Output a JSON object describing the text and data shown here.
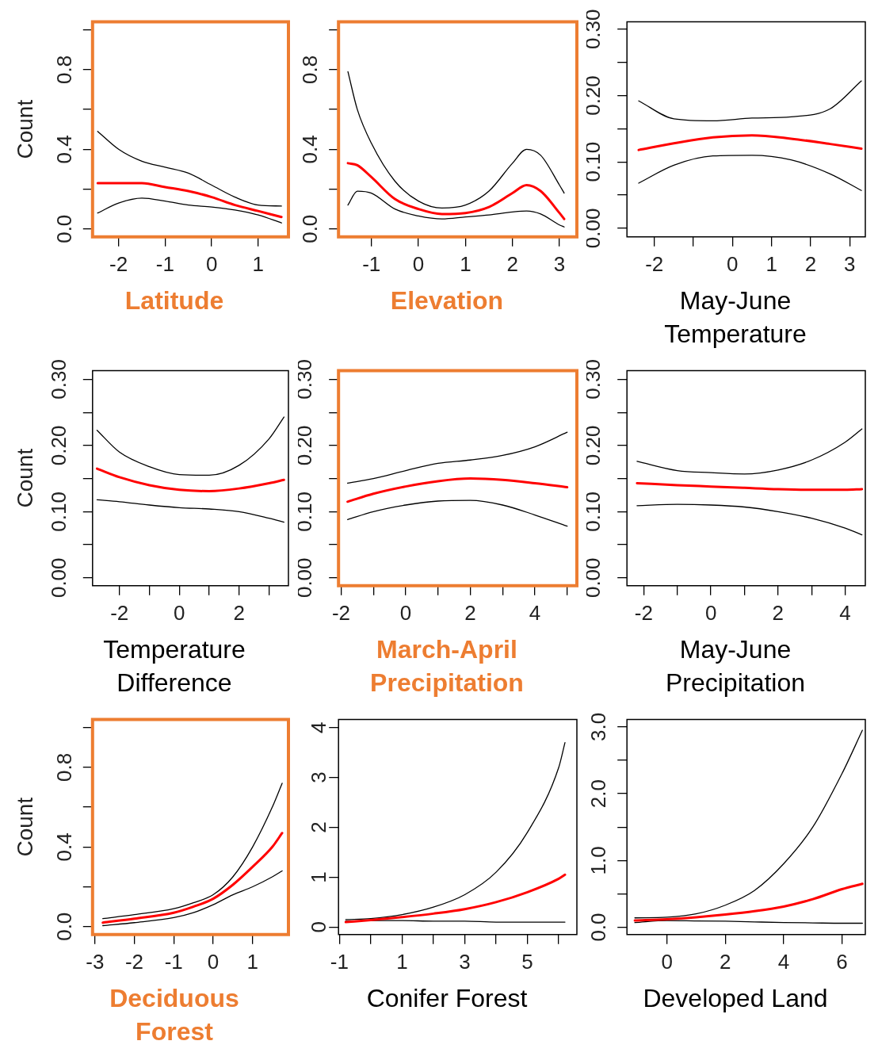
{
  "chart_data": [
    {
      "type": "line",
      "xlabel": "Latitude",
      "ylabel": "Count",
      "grid": false,
      "xlim": [
        -2.56,
        1.65
      ],
      "ylim": [
        -0.04,
        1.04
      ],
      "xticks": [
        -2,
        -1,
        0,
        1
      ],
      "yticks": [
        {
          "value": 0,
          "label": "0.0"
        },
        {
          "value": 0.2,
          "label": null
        },
        0.4,
        {
          "value": 0.6,
          "label": null
        },
        0.8,
        {
          "value": 1,
          "label": null
        }
      ],
      "x": [
        -2.45,
        -2,
        -1.5,
        -1,
        -0.5,
        0,
        0.5,
        1,
        1.5
      ],
      "series": [
        {
          "color": "#ff0000",
          "values": [
            0.23,
            0.23,
            0.23,
            0.21,
            0.19,
            0.16,
            0.12,
            0.09,
            0.06
          ]
        },
        {
          "color": "#000000",
          "values": [
            0.49,
            0.4,
            0.34,
            0.31,
            0.28,
            0.22,
            0.16,
            0.12,
            0.115
          ]
        },
        {
          "color": "#000000",
          "values": [
            0.08,
            0.13,
            0.155,
            0.14,
            0.12,
            0.11,
            0.095,
            0.07,
            0.03
          ]
        }
      ]
    },
    {
      "type": "line",
      "xlabel": "Elevation",
      "grid": false,
      "xlim": [
        -1.7,
        3.37
      ],
      "ylim": [
        -0.04,
        1.04
      ],
      "xticks": [
        -1,
        0,
        1,
        2,
        3
      ],
      "yticks": [
        {
          "value": 0,
          "label": "0.0"
        },
        {
          "value": 0.2,
          "label": null
        },
        0.4,
        {
          "value": 0.6,
          "label": null
        },
        0.8,
        {
          "value": 1,
          "label": null
        }
      ],
      "x": [
        -1.5,
        -1.3,
        -1,
        -0.5,
        0,
        0.5,
        1,
        1.5,
        2,
        2.3,
        2.6,
        3,
        3.1
      ],
      "series": [
        {
          "color": "#ff0000",
          "values": [
            0.33,
            0.32,
            0.26,
            0.15,
            0.1,
            0.075,
            0.08,
            0.11,
            0.18,
            0.22,
            0.19,
            0.08,
            0.05
          ]
        },
        {
          "color": "#000000",
          "values": [
            0.79,
            0.6,
            0.43,
            0.24,
            0.14,
            0.105,
            0.12,
            0.19,
            0.33,
            0.4,
            0.37,
            0.22,
            0.18
          ]
        },
        {
          "color": "#000000",
          "values": [
            0.12,
            0.19,
            0.18,
            0.1,
            0.065,
            0.05,
            0.06,
            0.07,
            0.085,
            0.09,
            0.075,
            0.02,
            0.01
          ]
        }
      ]
    },
    {
      "type": "line",
      "xlabel": "May-June Temperature",
      "grid": false,
      "xlim": [
        -2.7,
        3.4
      ],
      "ylim": [
        -0.013,
        0.311
      ],
      "xticks": [
        -2,
        {
          "value": -1,
          "label": null
        },
        0,
        1,
        2,
        3
      ],
      "yticks": [
        {
          "value": 0,
          "label": "0.00"
        },
        {
          "value": 0.05,
          "label": null
        },
        {
          "value": 0.1,
          "label": "0.10"
        },
        {
          "value": 0.15,
          "label": null
        },
        {
          "value": 0.2,
          "label": "0.20"
        },
        {
          "value": 0.25,
          "label": null
        },
        {
          "value": 0.3,
          "label": "0.30"
        }
      ],
      "x": [
        -2.4,
        -1.5,
        -0.5,
        0.5,
        1.5,
        2.5,
        3.3
      ],
      "series": [
        {
          "color": "#ff0000",
          "values": [
            0.118,
            0.128,
            0.137,
            0.14,
            0.135,
            0.127,
            0.12
          ]
        },
        {
          "color": "#000000",
          "values": [
            0.192,
            0.165,
            0.162,
            0.166,
            0.168,
            0.18,
            0.222
          ]
        },
        {
          "color": "#000000",
          "values": [
            0.068,
            0.095,
            0.109,
            0.11,
            0.103,
            0.082,
            0.057
          ]
        }
      ]
    },
    {
      "type": "line",
      "xlabel": "Temperature Difference",
      "ylabel": "Count",
      "grid": false,
      "xlim": [
        -2.9,
        3.65
      ],
      "ylim": [
        -0.012,
        0.313
      ],
      "xticks": [
        -2,
        {
          "value": -1,
          "label": null
        },
        0,
        {
          "value": 1,
          "label": null
        },
        2,
        {
          "value": 3,
          "label": null
        }
      ],
      "yticks": [
        {
          "value": 0,
          "label": "0.00"
        },
        {
          "value": 0.05,
          "label": null
        },
        {
          "value": 0.1,
          "label": "0.10"
        },
        {
          "value": 0.15,
          "label": null
        },
        {
          "value": 0.2,
          "label": "0.20"
        },
        {
          "value": 0.25,
          "label": null
        },
        {
          "value": 0.3,
          "label": "0.30"
        }
      ],
      "x": [
        -2.75,
        -2,
        -1,
        0,
        1,
        2,
        3,
        3.5
      ],
      "series": [
        {
          "color": "#ff0000",
          "values": [
            0.165,
            0.152,
            0.14,
            0.133,
            0.131,
            0.135,
            0.143,
            0.148
          ]
        },
        {
          "color": "#000000",
          "values": [
            0.223,
            0.19,
            0.168,
            0.156,
            0.155,
            0.17,
            0.21,
            0.243
          ]
        },
        {
          "color": "#000000",
          "values": [
            0.118,
            0.115,
            0.11,
            0.106,
            0.104,
            0.1,
            0.09,
            0.084
          ]
        }
      ]
    },
    {
      "type": "line",
      "xlabel": "March-April Precipitation",
      "grid": false,
      "xlim": [
        -2.08,
        5.3
      ],
      "ylim": [
        -0.012,
        0.313
      ],
      "xticks": [
        -2,
        {
          "value": -1,
          "label": null
        },
        0,
        {
          "value": 1,
          "label": null
        },
        2,
        {
          "value": 3,
          "label": null
        },
        4,
        {
          "value": 5,
          "label": null
        }
      ],
      "yticks": [
        {
          "value": 0,
          "label": "0.00"
        },
        {
          "value": 0.05,
          "label": null
        },
        {
          "value": 0.1,
          "label": "0.10"
        },
        {
          "value": 0.15,
          "label": null
        },
        {
          "value": 0.2,
          "label": "0.20"
        },
        {
          "value": 0.25,
          "label": null
        },
        {
          "value": 0.3,
          "label": "0.30"
        }
      ],
      "x": [
        -1.8,
        -1,
        0,
        1,
        2,
        3,
        4,
        5
      ],
      "series": [
        {
          "color": "#ff0000",
          "values": [
            0.115,
            0.127,
            0.138,
            0.146,
            0.15,
            0.148,
            0.143,
            0.137
          ]
        },
        {
          "color": "#000000",
          "values": [
            0.143,
            0.15,
            0.162,
            0.173,
            0.178,
            0.185,
            0.198,
            0.22
          ]
        },
        {
          "color": "#000000",
          "values": [
            0.088,
            0.1,
            0.11,
            0.116,
            0.117,
            0.11,
            0.095,
            0.078
          ]
        }
      ]
    },
    {
      "type": "line",
      "xlabel": "May-June Precipitation",
      "grid": false,
      "xlim": [
        -2.5,
        4.6
      ],
      "ylim": [
        -0.012,
        0.313
      ],
      "xticks": [
        -2,
        {
          "value": -1,
          "label": null
        },
        0,
        {
          "value": 1,
          "label": null
        },
        2,
        {
          "value": 3,
          "label": null
        },
        4
      ],
      "yticks": [
        {
          "value": 0,
          "label": "0.00"
        },
        {
          "value": 0.05,
          "label": null
        },
        {
          "value": 0.1,
          "label": "0.10"
        },
        {
          "value": 0.15,
          "label": null
        },
        {
          "value": 0.2,
          "label": "0.20"
        },
        {
          "value": 0.25,
          "label": null
        },
        {
          "value": 0.3,
          "label": "0.30"
        }
      ],
      "x": [
        -2.2,
        -1,
        0,
        1,
        2,
        3,
        4,
        4.5
      ],
      "series": [
        {
          "color": "#ff0000",
          "values": [
            0.143,
            0.14,
            0.138,
            0.136,
            0.134,
            0.133,
            0.133,
            0.134
          ]
        },
        {
          "color": "#000000",
          "values": [
            0.176,
            0.162,
            0.159,
            0.157,
            0.163,
            0.178,
            0.205,
            0.225
          ]
        },
        {
          "color": "#000000",
          "values": [
            0.109,
            0.111,
            0.11,
            0.107,
            0.1,
            0.09,
            0.075,
            0.065
          ]
        }
      ]
    },
    {
      "type": "line",
      "xlabel": "Deciduous Forest",
      "ylabel": "Count",
      "grid": false,
      "xlim": [
        -3.06,
        1.91
      ],
      "ylim": [
        -0.04,
        1.04
      ],
      "xticks": [
        -3,
        -2,
        -1,
        0,
        1
      ],
      "yticks": [
        {
          "value": 0,
          "label": "0.0"
        },
        {
          "value": 0.2,
          "label": null
        },
        0.4,
        {
          "value": 0.6,
          "label": null
        },
        0.8,
        {
          "value": 1,
          "label": null
        }
      ],
      "x": [
        -2.8,
        -2,
        -1,
        -0.5,
        0,
        0.5,
        1,
        1.5,
        1.75
      ],
      "series": [
        {
          "color": "#ff0000",
          "values": [
            0.02,
            0.04,
            0.07,
            0.1,
            0.14,
            0.21,
            0.3,
            0.4,
            0.47
          ]
        },
        {
          "color": "#000000",
          "values": [
            0.04,
            0.06,
            0.09,
            0.12,
            0.16,
            0.25,
            0.4,
            0.6,
            0.72
          ]
        },
        {
          "color": "#000000",
          "values": [
            0.005,
            0.02,
            0.045,
            0.07,
            0.11,
            0.16,
            0.2,
            0.25,
            0.28
          ]
        }
      ]
    },
    {
      "type": "line",
      "xlabel": "Conifer Forest",
      "grid": false,
      "xlim": [
        -1.03,
        6.58
      ],
      "ylim": [
        -0.15,
        4.16
      ],
      "xticks": [
        -1,
        {
          "value": 0,
          "label": null
        },
        1,
        {
          "value": 2,
          "label": null
        },
        3,
        {
          "value": 4,
          "label": null
        },
        5,
        {
          "value": 6,
          "label": null
        }
      ],
      "yticks": [
        0,
        1,
        2,
        3,
        4
      ],
      "x": [
        -0.8,
        0,
        1,
        2,
        3,
        4,
        5,
        6,
        6.2
      ],
      "series": [
        {
          "color": "#ff0000",
          "values": [
            0.1,
            0.14,
            0.2,
            0.27,
            0.36,
            0.5,
            0.7,
            0.97,
            1.05
          ]
        },
        {
          "color": "#000000",
          "values": [
            0.15,
            0.17,
            0.25,
            0.4,
            0.65,
            1.1,
            1.9,
            3.2,
            3.7
          ]
        },
        {
          "color": "#000000",
          "values": [
            0.12,
            0.13,
            0.13,
            0.12,
            0.12,
            0.1,
            0.1,
            0.1,
            0.1
          ]
        }
      ]
    },
    {
      "type": "line",
      "xlabel": "Developed Land",
      "grid": false,
      "xlim": [
        -1.37,
        6.8
      ],
      "ylim": [
        -0.11,
        3.11
      ],
      "xticks": [
        0,
        2,
        4,
        6
      ],
      "yticks": [
        {
          "value": 0,
          "label": "0.0"
        },
        {
          "value": 0.5,
          "label": null
        },
        {
          "value": 1,
          "label": "1.0"
        },
        {
          "value": 1.5,
          "label": null
        },
        {
          "value": 2,
          "label": "2.0"
        },
        {
          "value": 2.5,
          "label": null
        },
        {
          "value": 3,
          "label": "3.0"
        }
      ],
      "x": [
        -1.1,
        0,
        1,
        2,
        3,
        4,
        5,
        6,
        6.7
      ],
      "series": [
        {
          "color": "#ff0000",
          "values": [
            0.1,
            0.12,
            0.15,
            0.19,
            0.24,
            0.31,
            0.42,
            0.57,
            0.65
          ]
        },
        {
          "color": "#000000",
          "values": [
            0.14,
            0.15,
            0.2,
            0.33,
            0.55,
            0.95,
            1.5,
            2.3,
            2.95
          ]
        },
        {
          "color": "#000000",
          "values": [
            0.07,
            0.1,
            0.095,
            0.09,
            0.08,
            0.07,
            0.065,
            0.06,
            0.06
          ]
        }
      ]
    }
  ]
}
